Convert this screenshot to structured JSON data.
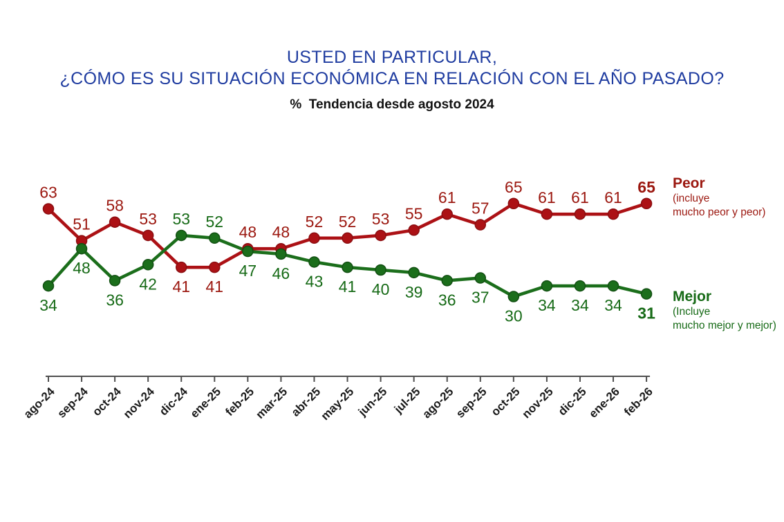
{
  "title": {
    "line1": "USTED EN PARTICULAR,",
    "line2": "¿CÓMO ES SU SITUACIÓN ECONÓMICA EN RELACIÓN CON EL AÑO PASADO?",
    "subtitle": "%  Tendencia desde agosto 2024",
    "color": "#1F3CA0"
  },
  "legend": {
    "peor": {
      "label": "Peor",
      "sub1": "(incluye",
      "sub2": "mucho peor y peor)",
      "color": "#9B170F"
    },
    "mejor": {
      "label": "Mejor",
      "sub1": "(Incluye",
      "sub2": "mucho mejor y mejor)",
      "color": "#166A16"
    }
  },
  "chart_data": {
    "type": "line",
    "title": "USTED EN PARTICULAR, ¿CÓMO ES SU SITUACIÓN ECONÓMICA EN RELACIÓN CON EL AÑO PASADO?",
    "subtitle": "% Tendencia desde agosto 2024",
    "x": [
      "ago-24",
      "sep-24",
      "oct-24",
      "nov-24",
      "dic-24",
      "ene-25",
      "feb-25",
      "mar-25",
      "abr-25",
      "may-25",
      "jun-25",
      "jul-25",
      "ago-25",
      "sep-25",
      "oct-25",
      "nov-25",
      "dic-25",
      "ene-26",
      "feb-26"
    ],
    "series": [
      {
        "name": "Peor (incluye mucho peor y peor)",
        "color": "#AC1115",
        "marker_stroke": "#8B0D10",
        "label_color": "#9B170F",
        "values": [
          63,
          51,
          58,
          53,
          41,
          41,
          48,
          48,
          52,
          52,
          53,
          55,
          61,
          57,
          65,
          61,
          61,
          61,
          65
        ]
      },
      {
        "name": "Mejor (Incluye mucho mejor y mejor)",
        "color": "#1B6E1B",
        "marker_stroke": "#124F12",
        "label_color": "#166A16",
        "values": [
          34,
          48,
          36,
          42,
          53,
          52,
          47,
          46,
          43,
          41,
          40,
          39,
          36,
          37,
          30,
          34,
          34,
          34,
          31
        ]
      }
    ],
    "ylim": [
      0,
      75
    ],
    "grid": false,
    "data_labels": true,
    "last_point_labels_bold": true,
    "legend_position": "right",
    "axis_color": "#4D4D4D",
    "tick_label_color": "#1A1A1A"
  }
}
